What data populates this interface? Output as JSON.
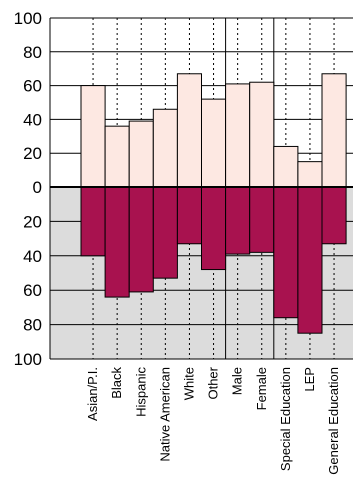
{
  "chart_data": {
    "type": "bar",
    "title": "",
    "xlabel": "",
    "ylabel": "",
    "categories": [
      "Asian/P.I.",
      "Black",
      "Hispanic",
      "Native American",
      "White",
      "Other",
      "Male",
      "Female",
      "Special Education",
      "LEP",
      "General Education"
    ],
    "series": [
      {
        "values": [
          60,
          36,
          39,
          46,
          67,
          52,
          61,
          62,
          24,
          15,
          67
        ]
      },
      {
        "values": [
          40,
          64,
          61,
          53,
          33,
          48,
          39,
          38,
          76,
          85,
          33
        ]
      }
    ],
    "y_top_ticks": [
      "100",
      "80",
      "60",
      "40",
      "20",
      "0"
    ],
    "y_bottom_ticks": [
      "20",
      "40",
      "60",
      "80",
      "100"
    ],
    "ylim": [
      -100,
      100
    ],
    "grid": true,
    "colors": {
      "upper_fill": "#fde8e2",
      "lower_fill": "#a8124f",
      "lower_background": "#dcdcdc",
      "grid": "#000000"
    }
  }
}
